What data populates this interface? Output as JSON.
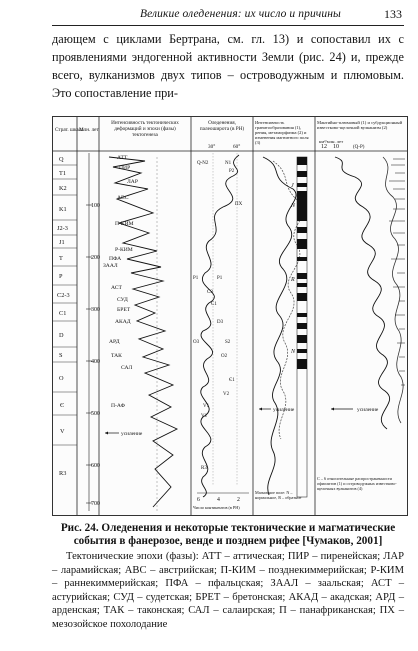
{
  "header": {
    "running_title": "Великие оледенения: их число и причины",
    "page_number": "133"
  },
  "body": {
    "paragraph": "дающем с циклами Бертрана, см. гл. 13) и сопоставил их с проявлениями эндогенной активности Земли (рис. 24) и, прежде всего, вулканизмов двух типов – островодужным и плюмовым. Это сопоставление при-"
  },
  "figure": {
    "columns": {
      "strat_scale": "Страт. шкала",
      "age": "Млн. лет",
      "tectonic": "Интенсивность тектонических деформаций и эпохи (фазы) тектогенеза",
      "glaciation": "Оледенения, палеоширота (в РН)",
      "granite": "Интенсивность гранитообразования (1), рения, метаморфизма (2) и изменения магнитного поля (3)",
      "mantle": "Мантийно-плюмовый (1) и субдукционный известково-щелочной вулканизм (2)"
    },
    "strat_units": [
      "Q",
      "T1",
      "K2",
      "K1",
      "J2-3",
      "J1",
      "T",
      "P",
      "C2-3",
      "C1",
      "D",
      "S",
      "O",
      "Є",
      "V",
      "R3"
    ],
    "age_ticks": [
      "100",
      "200",
      "300",
      "400",
      "500",
      "600",
      "700"
    ],
    "tectonic_phases": [
      "АТТ",
      "ПИР",
      "ЛАР",
      "АВС",
      "П-КИМ",
      "Р-КИМ",
      "ПФА",
      "ЗААЛ",
      "АСТ",
      "СУД",
      "БРЕТ",
      "АКАД",
      "АРД",
      "ТАК",
      "САЛ",
      "П-АФ"
    ],
    "glaciation_marks": [
      "Q-N2",
      "N1",
      "P2",
      "ПХ",
      "P1",
      "P1",
      "C3",
      "C1",
      "D3",
      "O3",
      "S2",
      "O2",
      "Є1",
      "V2",
      "V1",
      "V1",
      "R3"
    ],
    "paleolatitude_ticks": [
      "30°",
      "60°"
    ],
    "tectonic_axis_ticks": [
      "6",
      "4",
      "2"
    ],
    "tectonic_axis_label": "Число континентов (в РН)",
    "granite_marks": [
      "J",
      "N",
      "R",
      "N"
    ],
    "granite_legend": "Магнитное поле: N – нормальное, R – обратное",
    "mantle_header_ticks": [
      "12",
      "10"
    ],
    "mantle_header_unit": "км³/млн. лет",
    "mantle_header_label": "(Q-P)",
    "mantle_legend": "С – 6 относительные распространенности офиолитов (1) и островодужных известково-щелочных вулканитов (4)",
    "arrow_label": "усиление"
  },
  "caption": "Рис. 24. Оледенения и некоторые тектонические и магматические события в фанерозое, венде и позднем рифее [Чумаков, 2001]",
  "legend": "Тектонические эпохи (фазы): АТТ – аттическая; ПИР – пиренейская; ЛАР – ларамийская; АВС – австрийская; П-КИМ – позднекиммерийская; Р-КИМ – раннекиммерийская; ПФА – пфальцская; ЗААЛ – заальская; АСТ – астурийская; СУД – судетская; БРЕТ – бретонская; АКАД – акадская; АРД – арденская; ТАК – таконская; САЛ – салаирская; П – панафриканская; ПХ – мезозойское похолодание"
}
